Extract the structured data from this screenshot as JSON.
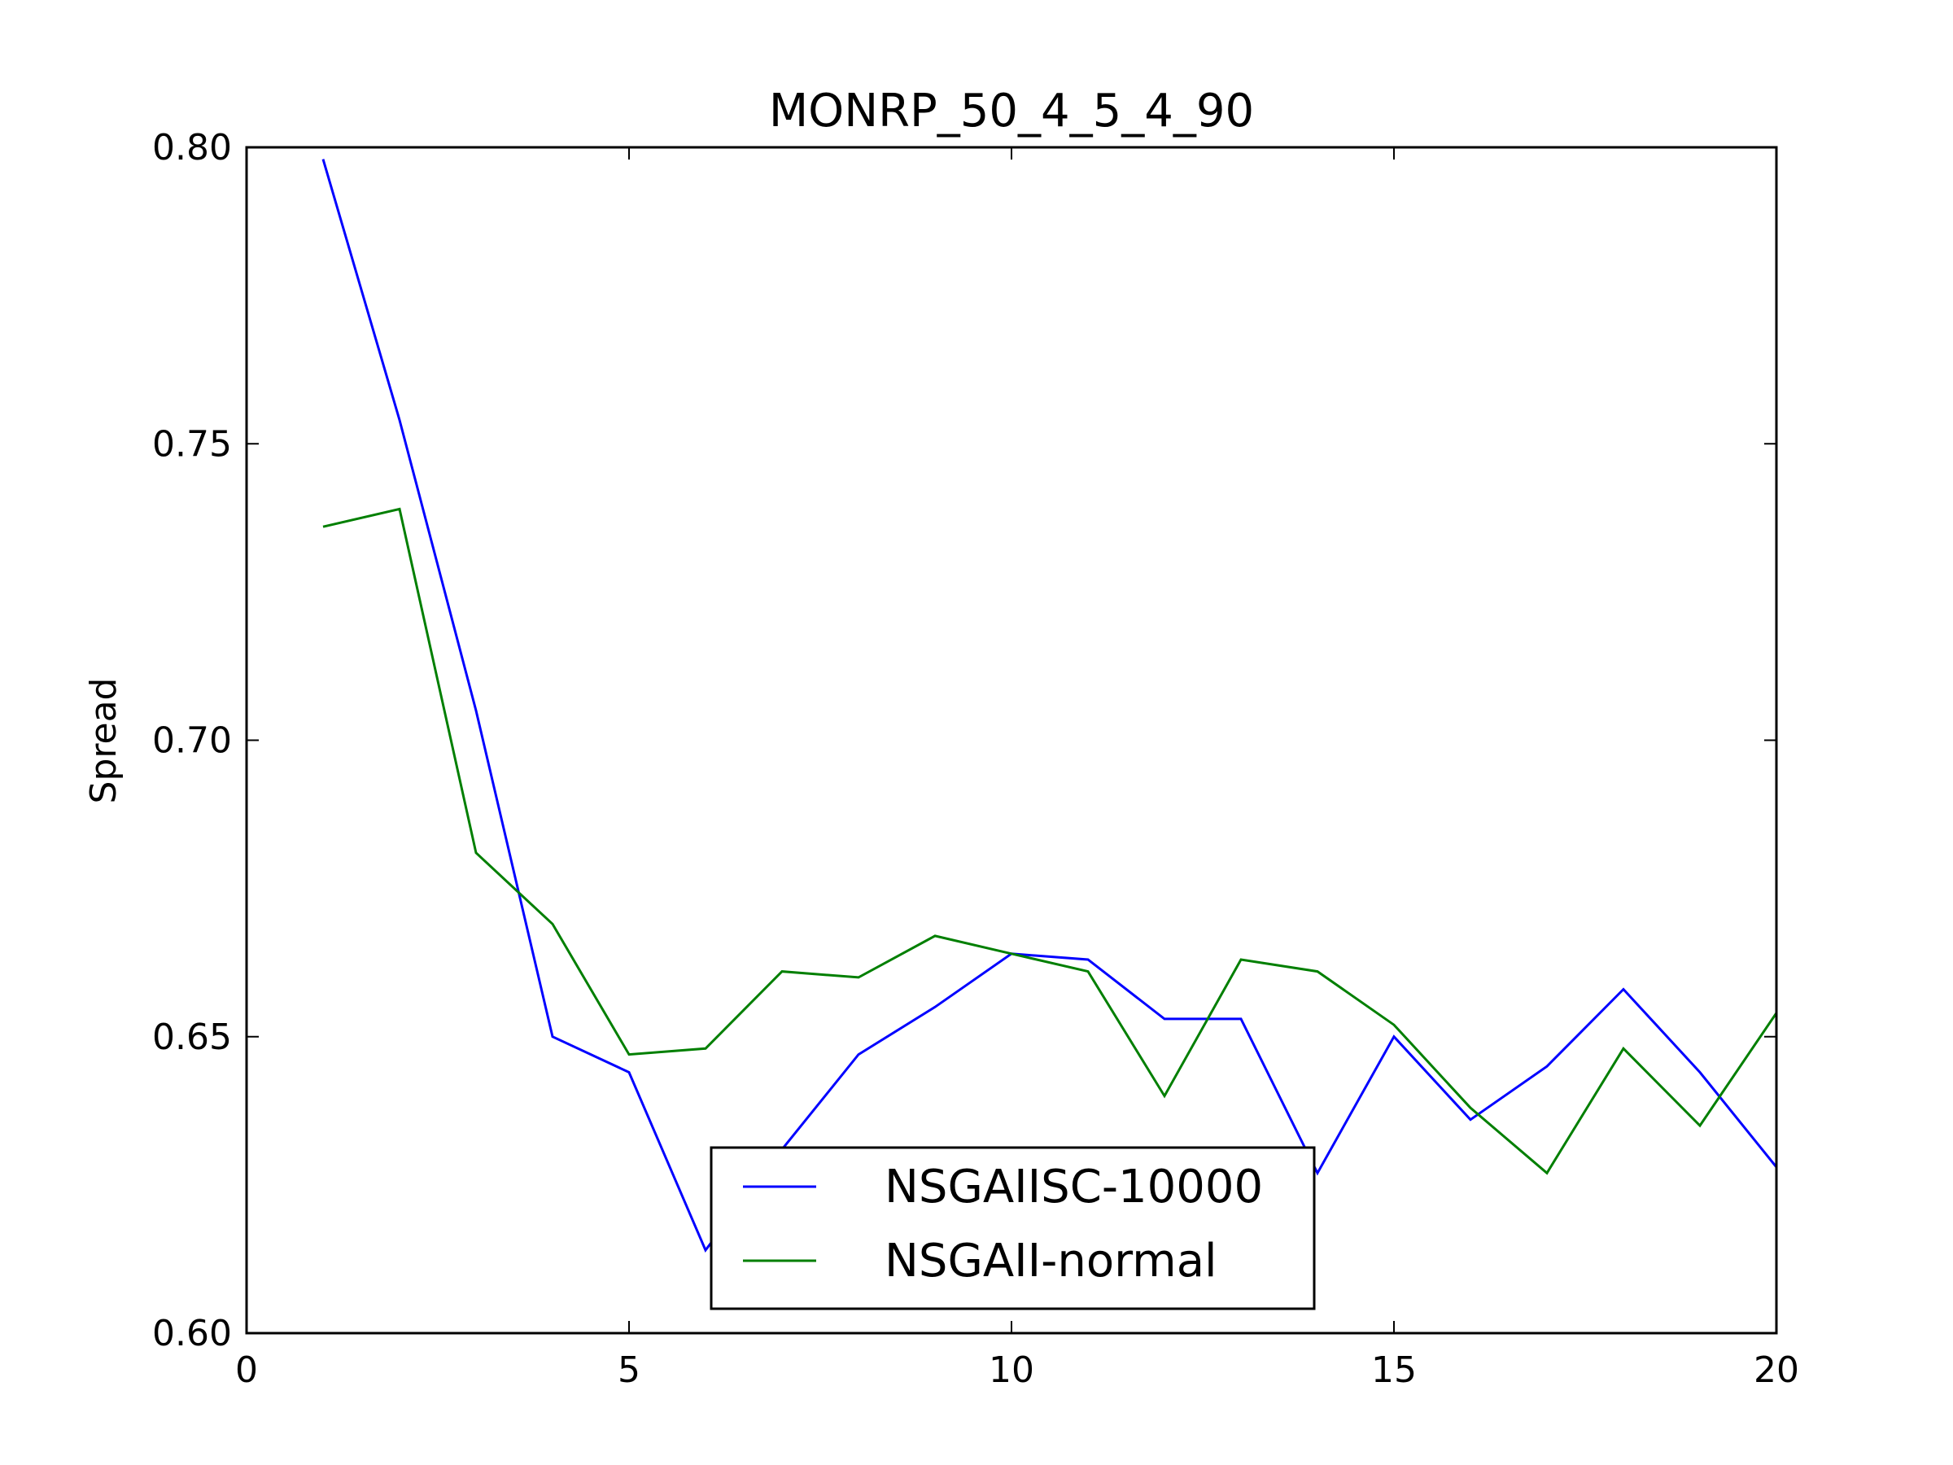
{
  "chart_data": {
    "type": "line",
    "title": "MONRP_50_4_5_4_90",
    "xlabel": "",
    "ylabel": "Spread",
    "xlim": [
      0,
      20
    ],
    "ylim": [
      0.6,
      0.8
    ],
    "xticks": [
      "0",
      "5",
      "10",
      "15",
      "20"
    ],
    "yticks": [
      "0.60",
      "0.65",
      "0.70",
      "0.75",
      "0.80"
    ],
    "grid": false,
    "legend_position": "lower-center",
    "x": [
      1,
      2,
      3,
      4,
      5,
      6,
      7,
      8,
      9,
      10,
      11,
      12,
      13,
      14,
      15,
      16,
      17,
      18,
      19,
      20
    ],
    "series": [
      {
        "name": "NSGAIISC-10000",
        "color": "#0000ff",
        "values": [
          0.798,
          0.754,
          0.705,
          0.65,
          0.644,
          0.614,
          0.631,
          0.647,
          0.655,
          0.664,
          0.663,
          0.653,
          0.653,
          0.627,
          0.65,
          0.636,
          0.645,
          0.658,
          0.644,
          0.628
        ]
      },
      {
        "name": "NSGAII-normal",
        "color": "#007f00",
        "values": [
          0.736,
          0.739,
          0.681,
          0.669,
          0.647,
          0.648,
          0.661,
          0.66,
          0.667,
          0.664,
          0.661,
          0.64,
          0.663,
          0.661,
          0.652,
          0.638,
          0.627,
          0.648,
          0.635,
          0.654
        ]
      }
    ]
  }
}
